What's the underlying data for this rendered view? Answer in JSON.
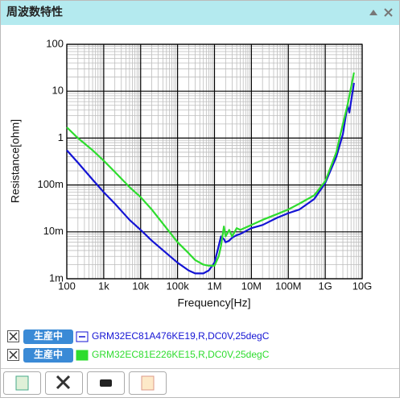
{
  "header": {
    "title": "周波数特性"
  },
  "chart_data": {
    "type": "line",
    "xlabel": "Frequency[Hz]",
    "ylabel": "Resistance[ohm]",
    "log_x": true,
    "log_y": true,
    "grid": true,
    "xlim": [
      100,
      10000000000
    ],
    "ylim": [
      0.001,
      100
    ],
    "xticks": [
      100,
      {
        "value": 1000,
        "label": "1k"
      },
      {
        "value": 10000,
        "label": "10k"
      },
      {
        "value": 100000,
        "label": "100k"
      },
      {
        "value": 1000000,
        "label": "1M"
      },
      {
        "value": 10000000,
        "label": "10M"
      },
      {
        "value": 100000000,
        "label": "100M"
      },
      {
        "value": 1000000000,
        "label": "1G"
      },
      {
        "value": 10000000000,
        "label": "10G"
      }
    ],
    "yticks": [
      100,
      10,
      1,
      {
        "value": 0.1,
        "label": "100m"
      },
      {
        "value": 0.01,
        "label": "10m"
      },
      {
        "value": 0.001,
        "label": "1m"
      }
    ],
    "x": [
      100,
      200,
      500,
      1000,
      2000,
      5000,
      10000,
      20000,
      50000,
      100000,
      200000,
      300000,
      500000,
      700000,
      1000000,
      1300000,
      1500000,
      1800000,
      2000000,
      2500000,
      3000000,
      4000000,
      5000000,
      10000000,
      20000000,
      50000000,
      100000000,
      200000000,
      500000000,
      1000000000,
      2000000000,
      3000000000,
      4000000000,
      4500000000,
      5000000000,
      6000000000
    ],
    "series": [
      {
        "name": "GRM32EC81A476KE19,R,DC0V,25degC",
        "status": "生産中",
        "color": "#1414d4",
        "values": [
          0.55,
          0.3,
          0.13,
          0.07,
          0.04,
          0.018,
          0.011,
          0.0065,
          0.0035,
          0.0022,
          0.0015,
          0.0013,
          0.0013,
          0.0015,
          0.0022,
          0.005,
          0.008,
          0.007,
          0.006,
          0.0065,
          0.0075,
          0.0085,
          0.009,
          0.012,
          0.014,
          0.02,
          0.025,
          0.03,
          0.05,
          0.11,
          0.4,
          1.2,
          5,
          3.5,
          6,
          15
        ]
      },
      {
        "name": "GRM32EC81E226KE15,R,DC0V,25degC",
        "status": "生産中",
        "color": "#2edc2e",
        "values": [
          1.7,
          1.0,
          0.55,
          0.33,
          0.19,
          0.09,
          0.055,
          0.03,
          0.012,
          0.006,
          0.0035,
          0.0025,
          0.002,
          0.0019,
          0.0019,
          0.003,
          0.005,
          0.013,
          0.008,
          0.011,
          0.008,
          0.012,
          0.011,
          0.014,
          0.018,
          0.024,
          0.03,
          0.04,
          0.06,
          0.12,
          0.5,
          2,
          5,
          8,
          12,
          25
        ]
      }
    ]
  }
}
